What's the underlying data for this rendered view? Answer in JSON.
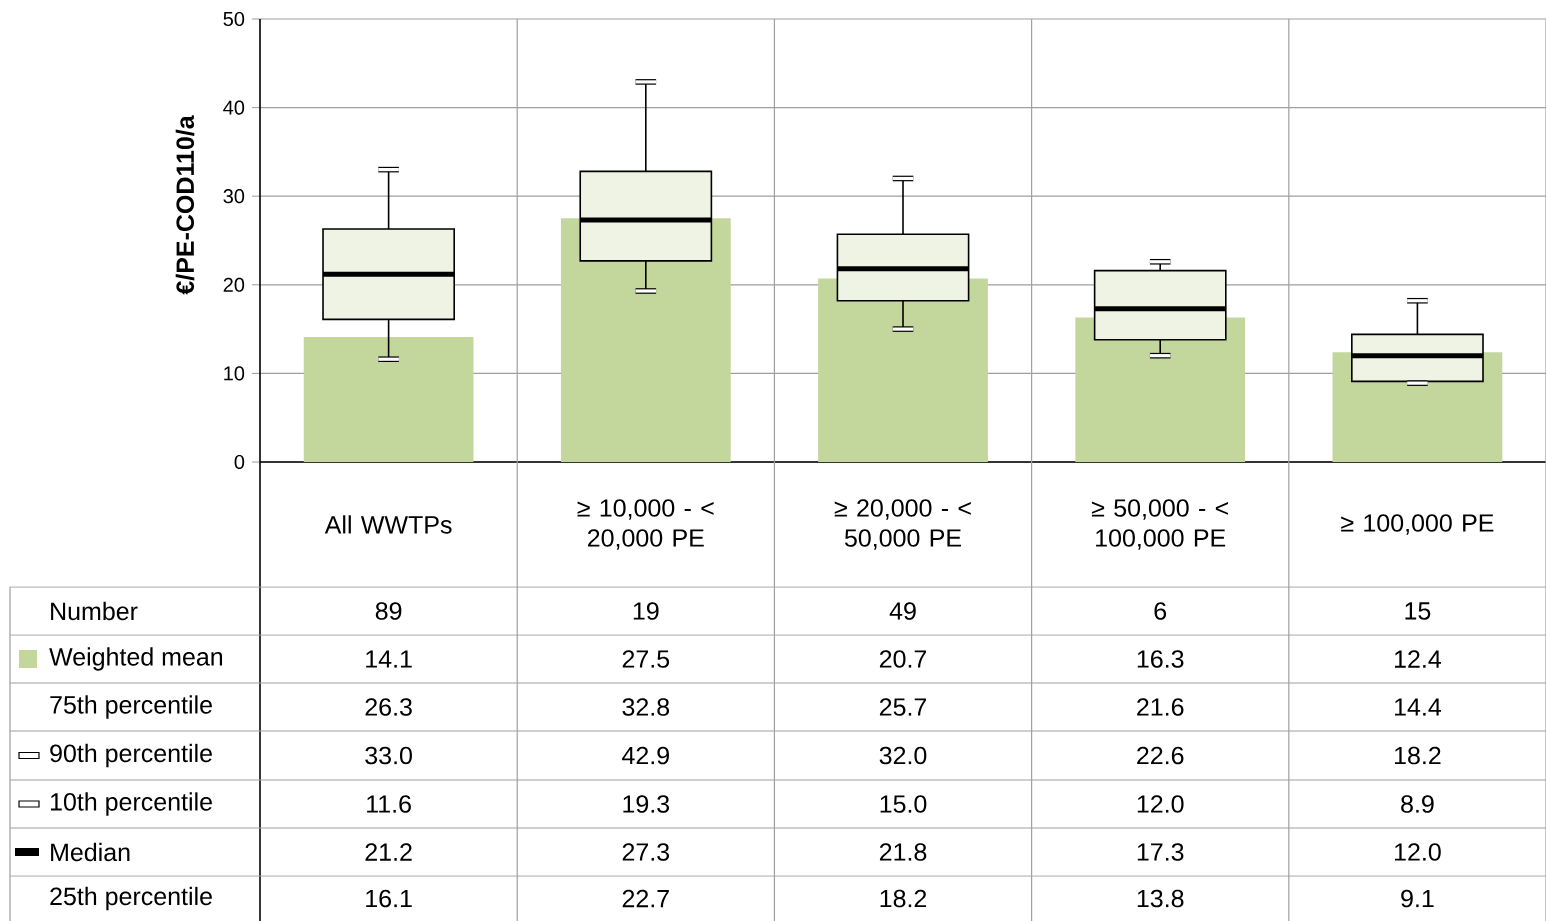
{
  "chart_data": {
    "type": "bar",
    "ylabel": "€/PE-COD110/a",
    "categories": [
      "All WWTPs",
      "≥ 10,000 - < 20,000 PE",
      "≥ 20,000 - < 50,000 PE",
      "≥ 50,000 - < 100,000 PE",
      "≥ 100,000 PE"
    ],
    "series": [
      {
        "name": "Weighted mean",
        "color": "#c3d69b",
        "values": [
          14.1,
          27.5,
          20.7,
          16.3,
          12.4
        ]
      },
      {
        "type": "box",
        "color": "#eef3e4",
        "boxes": [
          {
            "low": 11.6,
            "q1": 16.1,
            "median": 21.2,
            "q3": 26.3,
            "high": 33.0
          },
          {
            "low": 19.3,
            "q1": 22.7,
            "median": 27.3,
            "q3": 32.8,
            "high": 42.9
          },
          {
            "low": 15.0,
            "q1": 18.2,
            "median": 21.8,
            "q3": 25.7,
            "high": 32.0
          },
          {
            "low": 12.0,
            "q1": 13.8,
            "median": 17.3,
            "q3": 21.6,
            "high": 22.6
          },
          {
            "low": 8.9,
            "q1": 9.1,
            "median": 12.0,
            "q3": 14.4,
            "high": 18.2
          }
        ]
      }
    ],
    "ylim": [
      0,
      50
    ],
    "yticks": [
      0,
      10,
      20,
      30,
      40,
      50
    ],
    "grid": "y",
    "data_labels": true,
    "annotations": [
      "Number",
      "75th percentile",
      "90th percentile",
      "10th percentile",
      "Median",
      "25th percentile",
      "89",
      "19",
      "49",
      "6",
      "15",
      "26.3",
      "32.8",
      "25.7",
      "21.6",
      "14.4",
      "33.0",
      "42.9",
      "32.0",
      "22.6",
      "18.2",
      "11.6",
      "19.3",
      "15.0",
      "12.0",
      "8.9",
      "21.2",
      "27.3",
      "21.8",
      "17.3",
      "12.0",
      "16.1",
      "22.7",
      "18.2",
      "13.8",
      "9.1"
    ]
  }
}
